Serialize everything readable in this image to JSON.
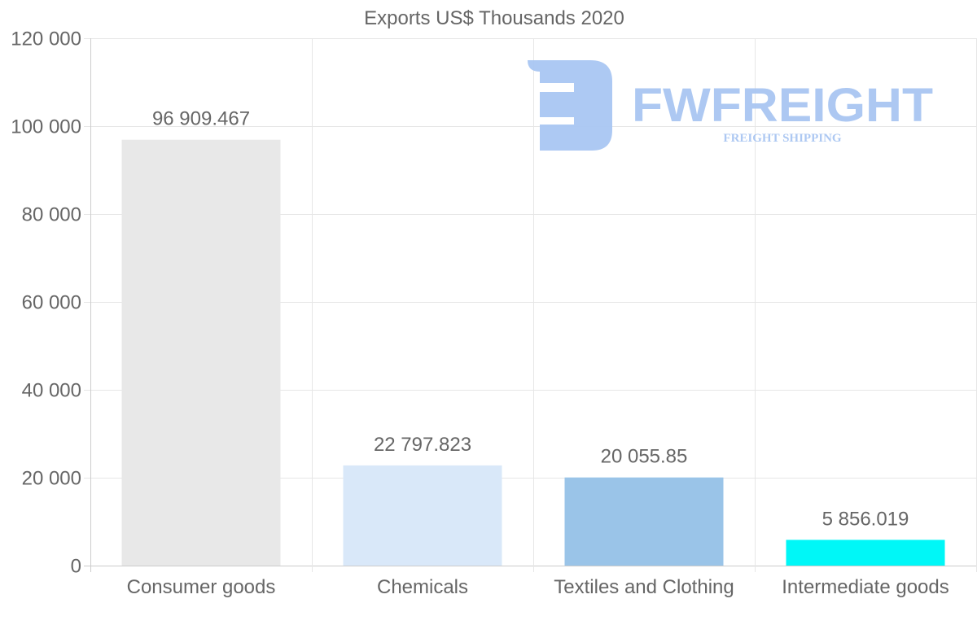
{
  "chart_data": {
    "type": "bar",
    "title": "Exports US$ Thousands 2020",
    "categories": [
      "Consumer goods",
      "Chemicals",
      "Textiles and Clothing",
      "Intermediate goods"
    ],
    "values": [
      96909.467,
      22797.823,
      20055.85,
      5856.019
    ],
    "value_labels": [
      "96 909.467",
      "22 797.823",
      "20 055.85",
      "5 856.019"
    ],
    "colors": [
      "#e8e8e8",
      "#d9e8f9",
      "#9ac4e8",
      "#00f7f7"
    ],
    "ylim": [
      0,
      120000
    ],
    "yticks": [
      0,
      20000,
      40000,
      60000,
      80000,
      100000,
      120000
    ],
    "ytick_labels": [
      "0",
      "20 000",
      "40 000",
      "60 000",
      "80 000",
      "100 000",
      "120 000"
    ],
    "xlabel": "",
    "ylabel": "",
    "grid": true,
    "legend": "none"
  },
  "watermark": {
    "brand": "FWFREIGHT",
    "tagline": "FREIGHT SHIPPING",
    "color": "#a9c6f2"
  }
}
